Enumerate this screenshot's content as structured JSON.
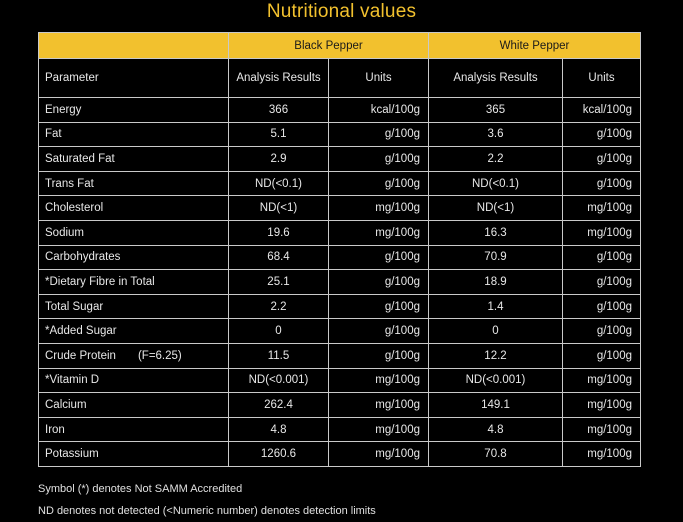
{
  "title": "Nutritional values",
  "products": {
    "black": "Black Pepper",
    "white": "White Pepper"
  },
  "headers": {
    "parameter": "Parameter",
    "black_results": "Analysis Results",
    "black_units": "Units",
    "white_results": "Analysis Results",
    "white_units": "Units"
  },
  "rows": [
    {
      "param": "Energy",
      "extra": "",
      "b_val": "366",
      "b_unit": "kcal/100g",
      "w_val": "365",
      "w_unit": "kcal/100g"
    },
    {
      "param": "Fat",
      "extra": "",
      "b_val": "5.1",
      "b_unit": "g/100g",
      "w_val": "3.6",
      "w_unit": "g/100g"
    },
    {
      "param": "Saturated Fat",
      "extra": "",
      "b_val": "2.9",
      "b_unit": "g/100g",
      "w_val": "2.2",
      "w_unit": "g/100g"
    },
    {
      "param": "Trans Fat",
      "extra": "",
      "b_val": "ND(<0.1)",
      "b_unit": "g/100g",
      "w_val": "ND(<0.1)",
      "w_unit": "g/100g"
    },
    {
      "param": "Cholesterol",
      "extra": "",
      "b_val": "ND(<1)",
      "b_unit": "mg/100g",
      "w_val": "ND(<1)",
      "w_unit": "mg/100g"
    },
    {
      "param": "Sodium",
      "extra": "",
      "b_val": "19.6",
      "b_unit": "mg/100g",
      "w_val": "16.3",
      "w_unit": "mg/100g"
    },
    {
      "param": "Carbohydrates",
      "extra": "",
      "b_val": "68.4",
      "b_unit": "g/100g",
      "w_val": "70.9",
      "w_unit": "g/100g"
    },
    {
      "param": "*Dietary Fibre in Total",
      "extra": "",
      "b_val": "25.1",
      "b_unit": "g/100g",
      "w_val": "18.9",
      "w_unit": "g/100g"
    },
    {
      "param": "Total Sugar",
      "extra": "",
      "b_val": "2.2",
      "b_unit": "g/100g",
      "w_val": "1.4",
      "w_unit": "g/100g"
    },
    {
      "param": "*Added Sugar",
      "extra": "",
      "b_val": "0",
      "b_unit": "g/100g",
      "w_val": "0",
      "w_unit": "g/100g"
    },
    {
      "param": "Crude Protein",
      "extra": "(F=6.25)",
      "b_val": "11.5",
      "b_unit": "g/100g",
      "w_val": "12.2",
      "w_unit": "g/100g"
    },
    {
      "param": "*Vitamin D",
      "extra": "",
      "b_val": "ND(<0.001)",
      "b_unit": "mg/100g",
      "w_val": "ND(<0.001)",
      "w_unit": "mg/100g"
    },
    {
      "param": "Calcium",
      "extra": "",
      "b_val": "262.4",
      "b_unit": "mg/100g",
      "w_val": "149.1",
      "w_unit": "mg/100g"
    },
    {
      "param": "Iron",
      "extra": "",
      "b_val": "4.8",
      "b_unit": "mg/100g",
      "w_val": "4.8",
      "w_unit": "mg/100g"
    },
    {
      "param": "Potassium",
      "extra": "",
      "b_val": "1260.6",
      "b_unit": "mg/100g",
      "w_val": "70.8",
      "w_unit": "mg/100g"
    }
  ],
  "notes": {
    "symbol": "Symbol (*) denotes Not SAMM Accredited",
    "nd": "ND denotes not detected (<Numeric number) denotes detection limits"
  },
  "colors": {
    "accent": "#f2c12e",
    "background": "#000000",
    "text": "#e8e8e8"
  }
}
